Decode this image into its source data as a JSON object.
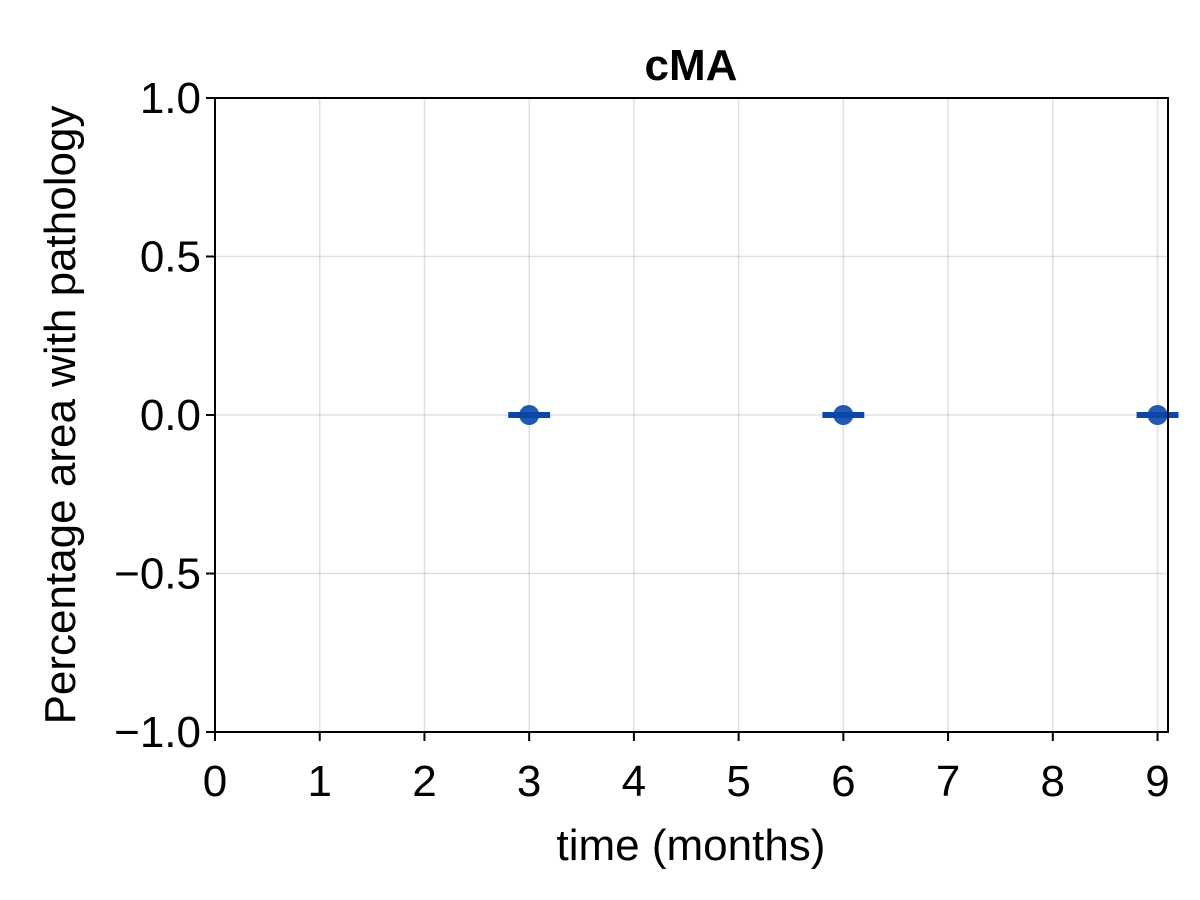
{
  "chart_data": {
    "type": "scatter",
    "title": "cMA",
    "xlabel": "time (months)",
    "ylabel": "Percentage area with pathology",
    "xlim": [
      0,
      9.1
    ],
    "ylim": [
      -1.0,
      1.0
    ],
    "x_ticks": [
      0,
      1,
      2,
      3,
      4,
      5,
      6,
      7,
      8,
      9
    ],
    "x_tick_labels": [
      "0",
      "1",
      "2",
      "3",
      "4",
      "5",
      "6",
      "7",
      "8",
      "9"
    ],
    "y_ticks": [
      -1.0,
      -0.5,
      0.0,
      0.5,
      1.0
    ],
    "y_tick_labels": [
      "−1.0",
      "−0.5",
      "0.0",
      "0.5",
      "1.0"
    ],
    "grid": true,
    "series": [
      {
        "x": [
          3,
          6,
          9
        ],
        "y": [
          0.0,
          0.0,
          0.0
        ],
        "error_bar_halfwidth_x": 0.2,
        "color": "#0a47a8"
      }
    ]
  }
}
